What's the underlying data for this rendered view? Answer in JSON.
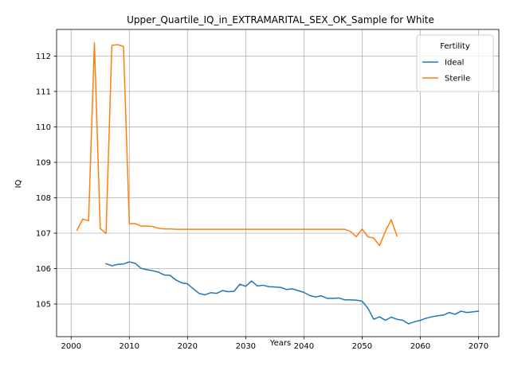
{
  "chart_data": {
    "type": "line",
    "title": "Upper_Quartile_IQ_in_EXTRAMARITAL_SEX_OK_Sample for White",
    "xlabel": "Years",
    "ylabel": "IQ",
    "xlim": [
      1997.5,
      2073.5
    ],
    "ylim": [
      104.08,
      112.75
    ],
    "xticks": [
      2000,
      2010,
      2020,
      2030,
      2040,
      2050,
      2060,
      2070
    ],
    "yticks": [
      105,
      106,
      107,
      108,
      109,
      110,
      111,
      112
    ],
    "grid": true,
    "legend": {
      "title": "Fertility",
      "position": "top-right"
    },
    "series": [
      {
        "name": "Ideal",
        "color": "#1f77b4",
        "x": [
          2006,
          2007,
          2008,
          2009,
          2010,
          2011,
          2012,
          2013,
          2014,
          2015,
          2016,
          2017,
          2018,
          2019,
          2020,
          2021,
          2022,
          2023,
          2024,
          2025,
          2026,
          2027,
          2028,
          2029,
          2030,
          2031,
          2032,
          2033,
          2034,
          2035,
          2036,
          2037,
          2038,
          2039,
          2040,
          2041,
          2042,
          2043,
          2044,
          2045,
          2046,
          2047,
          2048,
          2049,
          2050,
          2051,
          2052,
          2053,
          2054,
          2055,
          2056,
          2057,
          2058,
          2059,
          2060,
          2061,
          2062,
          2063,
          2064,
          2065,
          2066,
          2067,
          2068,
          2069,
          2070
        ],
        "y": [
          106.14,
          106.08,
          106.12,
          106.13,
          106.19,
          106.15,
          106.01,
          105.97,
          105.94,
          105.9,
          105.82,
          105.81,
          105.68,
          105.6,
          105.57,
          105.43,
          105.3,
          105.26,
          105.32,
          105.3,
          105.38,
          105.35,
          105.36,
          105.56,
          105.5,
          105.65,
          105.51,
          105.53,
          105.49,
          105.48,
          105.47,
          105.41,
          105.43,
          105.38,
          105.33,
          105.24,
          105.2,
          105.23,
          105.16,
          105.16,
          105.17,
          105.12,
          105.12,
          105.11,
          105.08,
          104.88,
          104.57,
          104.64,
          104.54,
          104.63,
          104.57,
          104.54,
          104.44,
          104.5,
          104.54,
          104.6,
          104.64,
          104.67,
          104.69,
          104.76,
          104.71,
          104.8,
          104.76,
          104.78,
          104.8
        ]
      },
      {
        "name": "Sterile",
        "color": "#ff7f0e",
        "x": [
          2001,
          2002,
          2003,
          2004,
          2005,
          2006,
          2007,
          2008,
          2009,
          2010,
          2011,
          2012,
          2013,
          2014,
          2015,
          2016,
          2017,
          2018,
          2019,
          2020,
          2021,
          2022,
          2023,
          2024,
          2025,
          2026,
          2027,
          2028,
          2029,
          2030,
          2031,
          2032,
          2033,
          2034,
          2035,
          2036,
          2037,
          2038,
          2039,
          2040,
          2041,
          2042,
          2043,
          2044,
          2045,
          2046,
          2047,
          2048,
          2049,
          2050,
          2051,
          2052,
          2053,
          2054,
          2055,
          2056
        ],
        "y": [
          107.08,
          107.4,
          107.35,
          112.37,
          107.13,
          106.99,
          112.3,
          112.32,
          112.27,
          107.27,
          107.27,
          107.2,
          107.2,
          107.19,
          107.14,
          107.12,
          107.12,
          107.11,
          107.11,
          107.11,
          107.11,
          107.11,
          107.11,
          107.11,
          107.11,
          107.11,
          107.11,
          107.11,
          107.11,
          107.11,
          107.11,
          107.11,
          107.11,
          107.11,
          107.11,
          107.11,
          107.11,
          107.11,
          107.11,
          107.11,
          107.11,
          107.11,
          107.11,
          107.11,
          107.11,
          107.11,
          107.11,
          107.05,
          106.9,
          107.12,
          106.9,
          106.86,
          106.65,
          107.05,
          107.38,
          106.92
        ]
      }
    ]
  }
}
